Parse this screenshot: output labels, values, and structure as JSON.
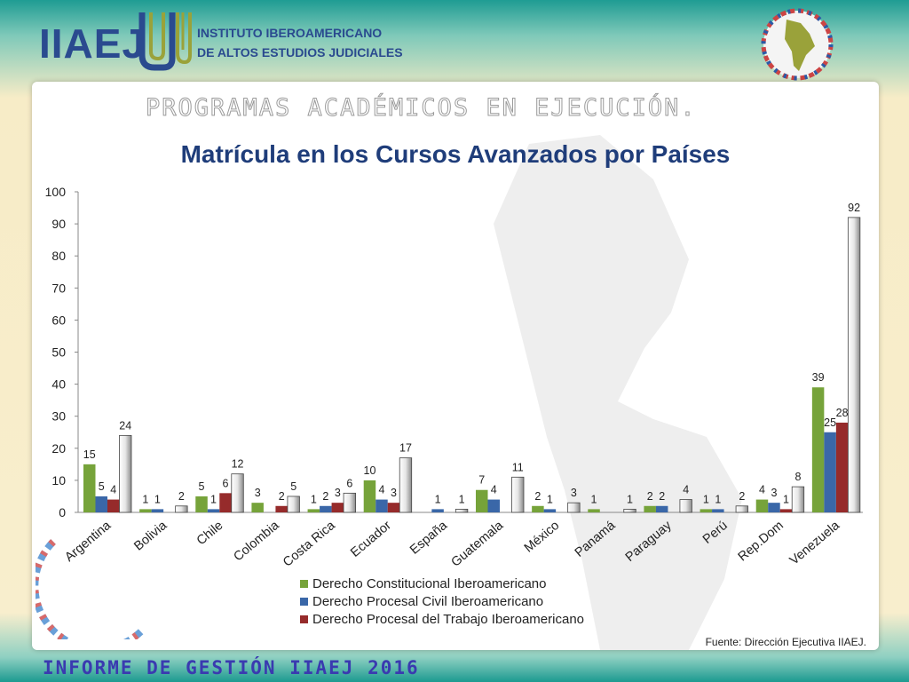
{
  "header": {
    "logo_text": "IIAEJ",
    "logo_mark": "JW",
    "institute_line1": "INSTITUTO IBEROAMERICANO",
    "institute_line2": "DE ALTOS ESTUDIOS JUDICIALES"
  },
  "slide": {
    "section_title": "PROGRAMAS ACADÉMICOS EN EJECUCIÓN.",
    "source": "Fuente: Dirección Ejecutiva IIAEJ.",
    "report": "INFORME DE GESTIÓN IIAEJ 2016"
  },
  "colors": {
    "series1": "#76a33a",
    "series2": "#3a67a8",
    "series3": "#962b2b",
    "series4": "#bdbdbd",
    "title": "#1f3d7a",
    "report": "#3a3ab0"
  },
  "chart_data": {
    "type": "bar",
    "title": "Matrícula en los Cursos Avanzados por Países",
    "xlabel": "",
    "ylabel": "",
    "ylim": [
      0,
      100
    ],
    "yticks": [
      0,
      10,
      20,
      30,
      40,
      50,
      60,
      70,
      80,
      90,
      100
    ],
    "grid": false,
    "legend_position": "bottom",
    "categories": [
      "Argentina",
      "Bolivia",
      "Chile",
      "Colombia",
      "Costa Rica",
      "Ecuador",
      "España",
      "Guatemala",
      "México",
      "Panamá",
      "Paraguay",
      "Perú",
      "Rep.Dom",
      "Venezuela"
    ],
    "series": [
      {
        "name": "Derecho Constitucional Iberoamericano",
        "values": [
          15,
          1,
          5,
          3,
          1,
          10,
          null,
          7,
          2,
          1,
          2,
          1,
          4,
          39
        ]
      },
      {
        "name": "Derecho Procesal Civil Iberoamericano",
        "values": [
          5,
          1,
          1,
          null,
          2,
          4,
          1,
          4,
          1,
          null,
          2,
          1,
          3,
          25
        ]
      },
      {
        "name": "Derecho Procesal del Trabajo Iberoamericano",
        "values": [
          4,
          null,
          6,
          2,
          3,
          3,
          null,
          null,
          null,
          null,
          null,
          null,
          1,
          28
        ]
      },
      {
        "values": [
          24,
          2,
          12,
          5,
          6,
          17,
          1,
          11,
          3,
          1,
          4,
          2,
          8,
          92
        ]
      }
    ]
  }
}
